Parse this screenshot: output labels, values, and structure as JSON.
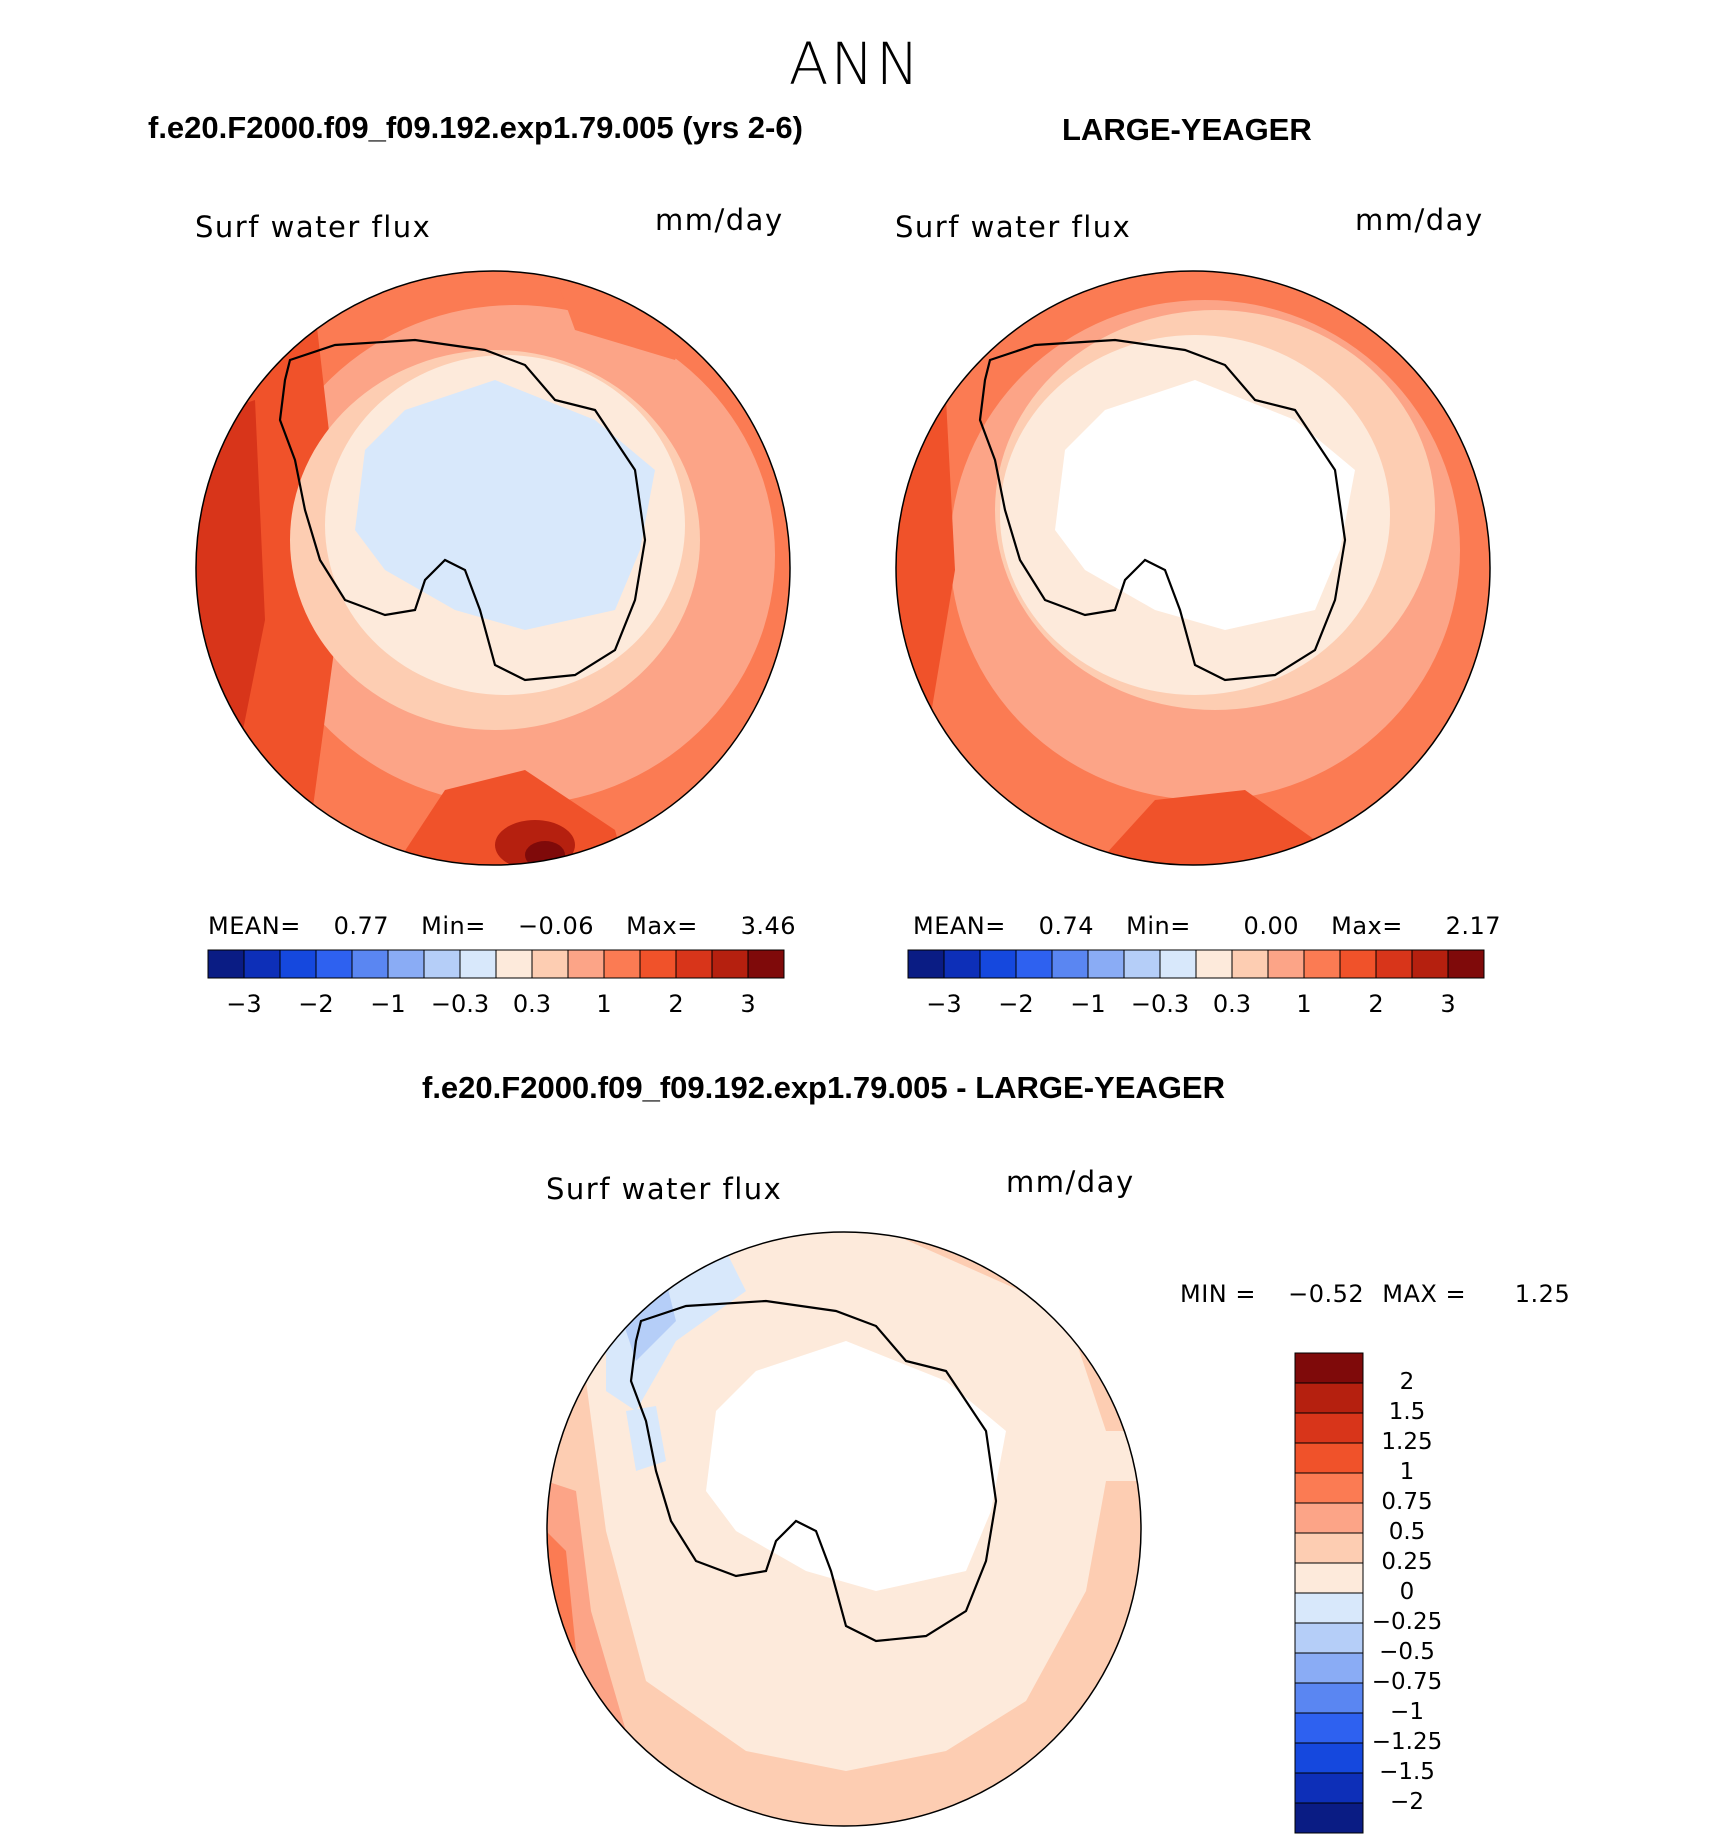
{
  "season": "ANN",
  "panels": [
    {
      "case_title": "f.e20.F2000.f09_f09.192.exp1.79.005 (yrs 2-6)",
      "variable": "Surf water flux",
      "units": "mm/day",
      "stats": {
        "mean_label": "MEAN=",
        "mean": "0.77",
        "min_label": "Min=",
        "min": "−0.06",
        "max_label": "Max=",
        "max": "3.46"
      },
      "outer_fill": "#fca487"
    },
    {
      "case_title": "LARGE-YEAGER",
      "variable": "Surf water flux",
      "units": "mm/day",
      "stats": {
        "mean_label": "MEAN=",
        "mean": "0.74",
        "min_label": "Min=",
        "min": "0.00",
        "max_label": "Max=",
        "max": "2.17"
      },
      "outer_fill": "#fca487"
    }
  ],
  "shared_colorbar": {
    "colors": [
      "#0a1c84",
      "#0d2fb8",
      "#1548de",
      "#2e61f0",
      "#5a86f2",
      "#8aacf5",
      "#b5cef8",
      "#d8e8fb",
      "#fdeadb",
      "#fdcdb2",
      "#fca487",
      "#fb7b53",
      "#f0522a",
      "#d8351a",
      "#b5200f",
      "#7f0a0a"
    ],
    "tick_labels": [
      "−3",
      "−2",
      "−1",
      "−0.3",
      "0.3",
      "1",
      "2",
      "3"
    ]
  },
  "difference": {
    "title": "f.e20.F2000.f09_f09.192.exp1.79.005 - LARGE-YEAGER",
    "variable": "Surf water flux",
    "units": "mm/day",
    "minmax": {
      "min_label": "MIN =",
      "min": "−0.52",
      "max_label": "MAX =",
      "max": "1.25"
    },
    "colorbar": {
      "colors": [
        "#7f0a0a",
        "#b5200f",
        "#d8351a",
        "#f0522a",
        "#fb7b53",
        "#fca487",
        "#fdcdb2",
        "#fdeadb",
        "#d8e8fb",
        "#b5cef8",
        "#8aacf5",
        "#5a86f2",
        "#2e61f0",
        "#1548de",
        "#0d2fb8",
        "#0a1c84"
      ],
      "tick_labels": [
        "2",
        "1.5",
        "1.25",
        "1",
        "0.75",
        "0.5",
        "0.25",
        "0",
        "−0.25",
        "−0.5",
        "−0.75",
        "−1",
        "−1.25",
        "−1.5",
        "−2"
      ]
    }
  }
}
